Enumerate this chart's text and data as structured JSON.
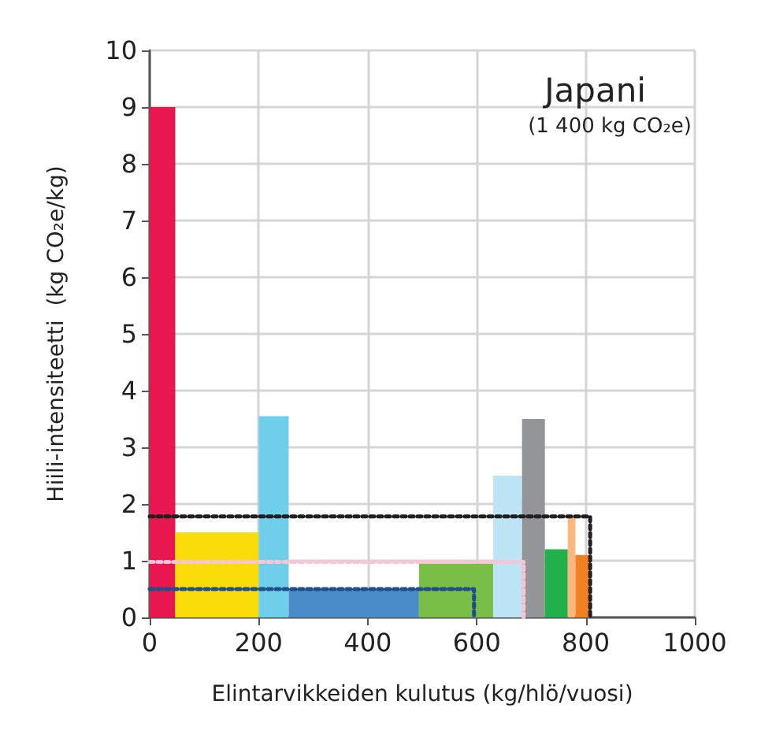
{
  "chart_data": {
    "type": "histogram",
    "title": "Japani",
    "annotations": [
      "(1 400 kg CO₂e)"
    ],
    "xlabel": "Elintarvikkeiden kulutus (kg/hlö/vuosi)",
    "ylabel": "Hiili-intensiteetti  (kg CO₂e/kg)",
    "bins": [
      0,
      47,
      200,
      255,
      494,
      630,
      683,
      725,
      767,
      781,
      808
    ],
    "values": [
      9.0,
      1.5,
      3.55,
      0.5,
      0.95,
      2.5,
      3.5,
      1.2,
      1.75,
      1.1
    ],
    "colors": [
      "#e8174f",
      "#f9dc0a",
      "#6fcfeb",
      "#4a8cc9",
      "#79be46",
      "#bde4f4",
      "#939598",
      "#22b04b",
      "#fbb77f",
      "#f08123"
    ],
    "series": [
      {
        "type": "line",
        "x": [
          0,
          808,
          808
        ],
        "values": [
          1.78,
          1.78,
          0
        ],
        "color": "#231f20",
        "line_style": "dotted"
      },
      {
        "type": "line",
        "x": [
          0,
          686,
          686
        ],
        "values": [
          0.98,
          0.98,
          0
        ],
        "color": "#f7c6d6",
        "line_style": "dotted"
      },
      {
        "type": "line",
        "x": [
          0,
          595,
          595
        ],
        "values": [
          0.5,
          0.5,
          0
        ],
        "color": "#1f4e8c",
        "line_style": "dotted"
      }
    ],
    "xlim": [
      0,
      1000
    ],
    "xticks": [
      0,
      200,
      400,
      600,
      800,
      1000
    ],
    "ylim": [
      0,
      10
    ],
    "yticks": [
      0,
      1,
      2,
      3,
      4,
      5,
      6,
      7,
      8,
      9,
      10
    ],
    "grid": true
  }
}
